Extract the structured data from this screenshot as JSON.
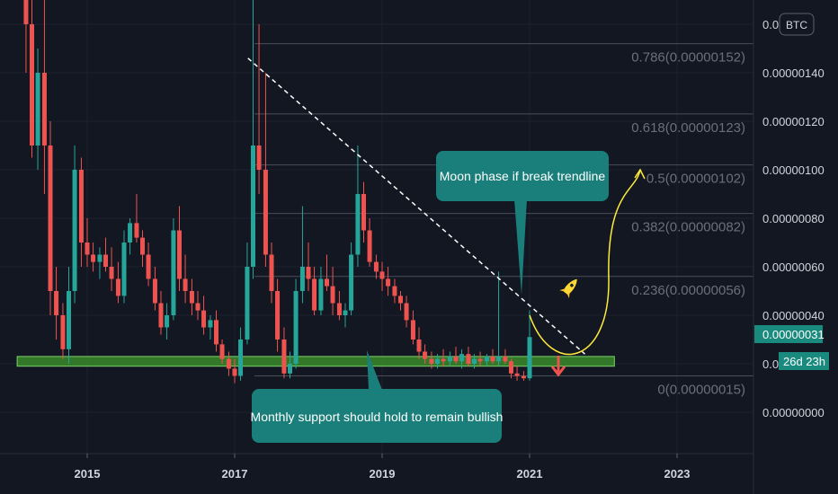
{
  "symbol": "BTC",
  "countdown": "26d 23h",
  "last_price_label": "0.00000031",
  "colors": {
    "background": "#131722",
    "up": "#26a69a",
    "down": "#ef5350",
    "support_zone": "#3a8a2a",
    "callout": "#1a7f7a",
    "trendline": "#ffffff",
    "projection": "#ffeb3b",
    "fib": "#4a4e59"
  },
  "annotations": {
    "moon_callout": "Moon phase if break trendline",
    "support_callout": "Monthly support should hold to remain bullish",
    "rocket_icon": "rocket-icon",
    "down_arrow_icon": "down-arrow-icon"
  },
  "chart_data": {
    "type": "candlestick",
    "x_ticks": [
      {
        "label": "2015",
        "x": 2015.0
      },
      {
        "label": "2017",
        "x": 2017.0
      },
      {
        "label": "2019",
        "x": 2019.0
      },
      {
        "label": "2021",
        "x": 2021.0
      },
      {
        "label": "2023",
        "x": 2023.0
      }
    ],
    "y_ticks": [
      {
        "label": "0.00000000",
        "value": 0.0
      },
      {
        "label": "0.00000040",
        "value": 4e-07
      },
      {
        "label": "0.00000060",
        "value": 6e-07
      },
      {
        "label": "0.00000080",
        "value": 8e-07
      },
      {
        "label": "0.00000100",
        "value": 1e-06
      },
      {
        "label": "0.00000120",
        "value": 1.2e-06
      },
      {
        "label": "0.00000140",
        "value": 1.4e-06
      }
    ],
    "partial_y_labels": [
      {
        "label": "0.0",
        "value": 1.6e-06
      },
      {
        "label": "0.0",
        "value": 2e-07
      }
    ],
    "fib_levels": [
      {
        "label": "0.786(0.00000152)",
        "value": 1.52e-06
      },
      {
        "label": "0.618(0.00000123)",
        "value": 1.23e-06
      },
      {
        "label": "0.5(0.00000102)",
        "value": 1.02e-06
      },
      {
        "label": "0.382(0.00000082)",
        "value": 8.2e-07
      },
      {
        "label": "0.236(0.00000056)",
        "value": 5.6e-07
      },
      {
        "label": "0(0.00000015)",
        "value": 1.5e-07
      }
    ],
    "support_zone": {
      "x_start": 2014.05,
      "x_end": 2022.15,
      "low": 1.9e-07,
      "high": 2.3e-07
    },
    "trendline": {
      "x1": 2017.18,
      "y1": 1.46e-06,
      "x2": 2021.75,
      "y2": 2.4e-07
    },
    "projection": {
      "x_start": 2021.0,
      "y_start": 4e-07,
      "x_end": 2022.5,
      "y_end": 1e-06
    },
    "candles": [
      {
        "x": 2014.17,
        "o": 3.4e-06,
        "h": 3.5e-06,
        "l": 1.4e-06,
        "c": 1.6e-06
      },
      {
        "x": 2014.25,
        "o": 1.6e-06,
        "h": 2e-06,
        "l": 1.05e-06,
        "c": 1.1e-06
      },
      {
        "x": 2014.33,
        "o": 1.1e-06,
        "h": 1.5e-06,
        "l": 1e-06,
        "c": 1.4e-06
      },
      {
        "x": 2014.42,
        "o": 1.4e-06,
        "h": 1.8e-06,
        "l": 9e-07,
        "c": 1.1e-06
      },
      {
        "x": 2014.5,
        "o": 1.1e-06,
        "h": 1.2e-06,
        "l": 4e-07,
        "c": 5e-07
      },
      {
        "x": 2014.58,
        "o": 5e-07,
        "h": 6e-07,
        "l": 3e-07,
        "c": 4e-07
      },
      {
        "x": 2014.67,
        "o": 4e-07,
        "h": 4.5e-07,
        "l": 2.2e-07,
        "c": 2.6e-07
      },
      {
        "x": 2014.75,
        "o": 2.6e-07,
        "h": 6e-07,
        "l": 2e-07,
        "c": 5e-07
      },
      {
        "x": 2014.83,
        "o": 5e-07,
        "h": 1.1e-06,
        "l": 4.5e-07,
        "c": 1e-06
      },
      {
        "x": 2014.92,
        "o": 1e-06,
        "h": 1.05e-06,
        "l": 6e-07,
        "c": 7e-07
      },
      {
        "x": 2015.0,
        "o": 7e-07,
        "h": 8e-07,
        "l": 6e-07,
        "c": 6.5e-07
      },
      {
        "x": 2015.08,
        "o": 6.5e-07,
        "h": 7e-07,
        "l": 5.8e-07,
        "c": 6.2e-07
      },
      {
        "x": 2015.17,
        "o": 6.2e-07,
        "h": 6.8e-07,
        "l": 5.5e-07,
        "c": 6.5e-07
      },
      {
        "x": 2015.25,
        "o": 6.5e-07,
        "h": 7.2e-07,
        "l": 5.8e-07,
        "c": 6e-07
      },
      {
        "x": 2015.33,
        "o": 6e-07,
        "h": 6.8e-07,
        "l": 5e-07,
        "c": 5.5e-07
      },
      {
        "x": 2015.42,
        "o": 5.5e-07,
        "h": 6.2e-07,
        "l": 4.5e-07,
        "c": 4.8e-07
      },
      {
        "x": 2015.5,
        "o": 4.8e-07,
        "h": 7.5e-07,
        "l": 4.5e-07,
        "c": 7e-07
      },
      {
        "x": 2015.58,
        "o": 7e-07,
        "h": 8e-07,
        "l": 6.5e-07,
        "c": 7.8e-07
      },
      {
        "x": 2015.67,
        "o": 7.8e-07,
        "h": 9e-07,
        "l": 7e-07,
        "c": 7.2e-07
      },
      {
        "x": 2015.75,
        "o": 7.2e-07,
        "h": 7.5e-07,
        "l": 6e-07,
        "c": 6.5e-07
      },
      {
        "x": 2015.83,
        "o": 6.5e-07,
        "h": 7e-07,
        "l": 5.2e-07,
        "c": 5.5e-07
      },
      {
        "x": 2015.92,
        "o": 5.5e-07,
        "h": 6e-07,
        "l": 4.2e-07,
        "c": 4.5e-07
      },
      {
        "x": 2016.0,
        "o": 4.5e-07,
        "h": 5e-07,
        "l": 3.2e-07,
        "c": 3.5e-07
      },
      {
        "x": 2016.08,
        "o": 3.5e-07,
        "h": 4.5e-07,
        "l": 3e-07,
        "c": 4e-07
      },
      {
        "x": 2016.17,
        "o": 4e-07,
        "h": 8e-07,
        "l": 3.8e-07,
        "c": 7.5e-07
      },
      {
        "x": 2016.25,
        "o": 7.5e-07,
        "h": 8.5e-07,
        "l": 5e-07,
        "c": 5.5e-07
      },
      {
        "x": 2016.33,
        "o": 5.5e-07,
        "h": 6.5e-07,
        "l": 4.5e-07,
        "c": 5e-07
      },
      {
        "x": 2016.42,
        "o": 5e-07,
        "h": 5.5e-07,
        "l": 4e-07,
        "c": 4.5e-07
      },
      {
        "x": 2016.5,
        "o": 4.5e-07,
        "h": 5e-07,
        "l": 3.8e-07,
        "c": 4.2e-07
      },
      {
        "x": 2016.58,
        "o": 4.2e-07,
        "h": 4.8e-07,
        "l": 3.2e-07,
        "c": 3.5e-07
      },
      {
        "x": 2016.67,
        "o": 3.5e-07,
        "h": 4e-07,
        "l": 3e-07,
        "c": 3.8e-07
      },
      {
        "x": 2016.75,
        "o": 3.8e-07,
        "h": 4.2e-07,
        "l": 2.5e-07,
        "c": 2.8e-07
      },
      {
        "x": 2016.83,
        "o": 2.8e-07,
        "h": 3e-07,
        "l": 2e-07,
        "c": 2.2e-07
      },
      {
        "x": 2016.92,
        "o": 2.2e-07,
        "h": 2.5e-07,
        "l": 1.5e-07,
        "c": 1.8e-07
      },
      {
        "x": 2017.0,
        "o": 1.8e-07,
        "h": 2.2e-07,
        "l": 1.2e-07,
        "c": 1.5e-07
      },
      {
        "x": 2017.08,
        "o": 1.5e-07,
        "h": 3.5e-07,
        "l": 1.3e-07,
        "c": 3e-07
      },
      {
        "x": 2017.17,
        "o": 3e-07,
        "h": 7e-07,
        "l": 2.8e-07,
        "c": 6e-07
      },
      {
        "x": 2017.25,
        "o": 6e-07,
        "h": 1.7e-06,
        "l": 5.5e-07,
        "c": 1.1e-06
      },
      {
        "x": 2017.33,
        "o": 1.1e-06,
        "h": 1.6e-06,
        "l": 9e-07,
        "c": 1e-06
      },
      {
        "x": 2017.42,
        "o": 1e-06,
        "h": 1.4e-06,
        "l": 6e-07,
        "c": 6.5e-07
      },
      {
        "x": 2017.5,
        "o": 6.5e-07,
        "h": 7e-07,
        "l": 4.5e-07,
        "c": 5e-07
      },
      {
        "x": 2017.58,
        "o": 5e-07,
        "h": 5.5e-07,
        "l": 2.5e-07,
        "c": 3e-07
      },
      {
        "x": 2017.67,
        "o": 3e-07,
        "h": 3.5e-07,
        "l": 1.4e-07,
        "c": 1.6e-07
      },
      {
        "x": 2017.75,
        "o": 1.6e-07,
        "h": 2.5e-07,
        "l": 1.4e-07,
        "c": 2e-07
      },
      {
        "x": 2017.83,
        "o": 2e-07,
        "h": 5.5e-07,
        "l": 1.8e-07,
        "c": 5e-07
      },
      {
        "x": 2017.92,
        "o": 5e-07,
        "h": 8.5e-07,
        "l": 4.5e-07,
        "c": 6e-07
      },
      {
        "x": 2018.0,
        "o": 6e-07,
        "h": 7e-07,
        "l": 5e-07,
        "c": 5.5e-07
      },
      {
        "x": 2018.08,
        "o": 5.5e-07,
        "h": 6e-07,
        "l": 4e-07,
        "c": 4.2e-07
      },
      {
        "x": 2018.17,
        "o": 4.2e-07,
        "h": 6e-07,
        "l": 4e-07,
        "c": 5.5e-07
      },
      {
        "x": 2018.25,
        "o": 5.5e-07,
        "h": 6.5e-07,
        "l": 5e-07,
        "c": 5.2e-07
      },
      {
        "x": 2018.33,
        "o": 5.2e-07,
        "h": 6e-07,
        "l": 4e-07,
        "c": 4.5e-07
      },
      {
        "x": 2018.42,
        "o": 4.5e-07,
        "h": 5e-07,
        "l": 3.8e-07,
        "c": 4e-07
      },
      {
        "x": 2018.5,
        "o": 4e-07,
        "h": 4.5e-07,
        "l": 3.5e-07,
        "c": 4.2e-07
      },
      {
        "x": 2018.58,
        "o": 4.2e-07,
        "h": 7e-07,
        "l": 4e-07,
        "c": 6.5e-07
      },
      {
        "x": 2018.67,
        "o": 6.5e-07,
        "h": 1.1e-06,
        "l": 6e-07,
        "c": 9e-07
      },
      {
        "x": 2018.75,
        "o": 9e-07,
        "h": 9.5e-07,
        "l": 7e-07,
        "c": 7.5e-07
      },
      {
        "x": 2018.83,
        "o": 7.5e-07,
        "h": 8e-07,
        "l": 6e-07,
        "c": 6.2e-07
      },
      {
        "x": 2018.92,
        "o": 6.2e-07,
        "h": 6.5e-07,
        "l": 5.5e-07,
        "c": 5.8e-07
      },
      {
        "x": 2019.0,
        "o": 5.8e-07,
        "h": 6.2e-07,
        "l": 5e-07,
        "c": 5.5e-07
      },
      {
        "x": 2019.08,
        "o": 5.5e-07,
        "h": 6e-07,
        "l": 4.8e-07,
        "c": 5.2e-07
      },
      {
        "x": 2019.17,
        "o": 5.2e-07,
        "h": 5.5e-07,
        "l": 4.5e-07,
        "c": 4.8e-07
      },
      {
        "x": 2019.25,
        "o": 4.8e-07,
        "h": 5e-07,
        "l": 4.2e-07,
        "c": 4.5e-07
      },
      {
        "x": 2019.33,
        "o": 4.5e-07,
        "h": 4.8e-07,
        "l": 3.5e-07,
        "c": 3.8e-07
      },
      {
        "x": 2019.42,
        "o": 3.8e-07,
        "h": 4.2e-07,
        "l": 2.8e-07,
        "c": 3e-07
      },
      {
        "x": 2019.5,
        "o": 3e-07,
        "h": 3.5e-07,
        "l": 2.2e-07,
        "c": 2.5e-07
      },
      {
        "x": 2019.58,
        "o": 2.5e-07,
        "h": 2.8e-07,
        "l": 2e-07,
        "c": 2.2e-07
      },
      {
        "x": 2019.67,
        "o": 2.2e-07,
        "h": 2.5e-07,
        "l": 1.8e-07,
        "c": 2e-07
      },
      {
        "x": 2019.75,
        "o": 2e-07,
        "h": 2.4e-07,
        "l": 1.8e-07,
        "c": 2.2e-07
      },
      {
        "x": 2019.83,
        "o": 2.2e-07,
        "h": 2.6e-07,
        "l": 1.9e-07,
        "c": 2.1e-07
      },
      {
        "x": 2019.92,
        "o": 2.1e-07,
        "h": 2.5e-07,
        "l": 1.9e-07,
        "c": 2.3e-07
      },
      {
        "x": 2020.0,
        "o": 2.3e-07,
        "h": 2.7e-07,
        "l": 2e-07,
        "c": 2.1e-07
      },
      {
        "x": 2020.08,
        "o": 2.1e-07,
        "h": 2.6e-07,
        "l": 1.8e-07,
        "c": 2.4e-07
      },
      {
        "x": 2020.17,
        "o": 2.4e-07,
        "h": 2.7e-07,
        "l": 1.9e-07,
        "c": 2e-07
      },
      {
        "x": 2020.25,
        "o": 2e-07,
        "h": 2.4e-07,
        "l": 1.8e-07,
        "c": 2.2e-07
      },
      {
        "x": 2020.33,
        "o": 2.2e-07,
        "h": 2.5e-07,
        "l": 1.9e-07,
        "c": 2.1e-07
      },
      {
        "x": 2020.42,
        "o": 2.1e-07,
        "h": 2.4e-07,
        "l": 1.9e-07,
        "c": 2.3e-07
      },
      {
        "x": 2020.5,
        "o": 2.3e-07,
        "h": 2.6e-07,
        "l": 2e-07,
        "c": 2.1e-07
      },
      {
        "x": 2020.58,
        "o": 2.1e-07,
        "h": 5.8e-07,
        "l": 1.9e-07,
        "c": 2.3e-07
      },
      {
        "x": 2020.67,
        "o": 2.3e-07,
        "h": 2.6e-07,
        "l": 2e-07,
        "c": 2.1e-07
      },
      {
        "x": 2020.75,
        "o": 2.1e-07,
        "h": 2.2e-07,
        "l": 1.4e-07,
        "c": 1.6e-07
      },
      {
        "x": 2020.83,
        "o": 1.6e-07,
        "h": 1.9e-07,
        "l": 1.3e-07,
        "c": 1.5e-07
      },
      {
        "x": 2020.92,
        "o": 1.5e-07,
        "h": 1.7e-07,
        "l": 1.3e-07,
        "c": 1.4e-07
      },
      {
        "x": 2021.0,
        "o": 1.4e-07,
        "h": 4.2e-07,
        "l": 1.3e-07,
        "c": 3.1e-07
      }
    ]
  }
}
